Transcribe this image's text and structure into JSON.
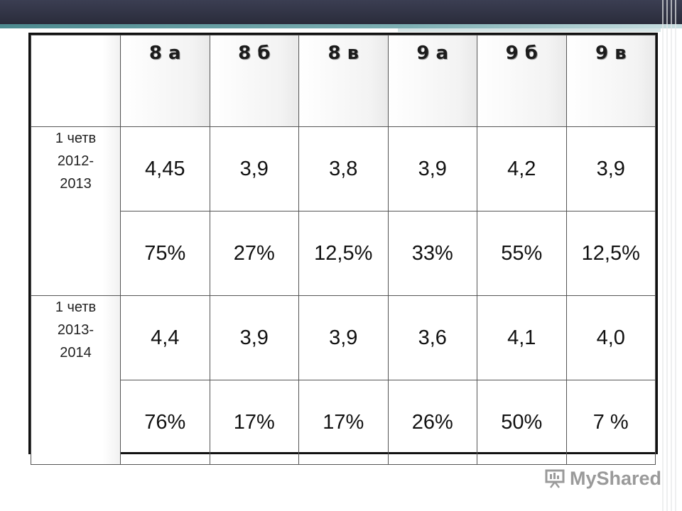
{
  "table": {
    "columns": [
      "8 а",
      "8 б",
      "8 в",
      "9 а",
      "9 б",
      "9 в"
    ],
    "periods": [
      {
        "label_lines": [
          "1 четв",
          "2012-",
          "2013"
        ],
        "averages": [
          "4,45",
          "3,9",
          "3,8",
          "3,9",
          "4,2",
          "3,9"
        ],
        "percents": [
          "75%",
          "27%",
          "12,5%",
          "33%",
          "55%",
          "12,5%"
        ]
      },
      {
        "label_lines": [
          "1 четв",
          "2013-",
          "2014"
        ],
        "averages": [
          "4,4",
          "3,9",
          "3,9",
          "3,6",
          "4,1",
          "4,0"
        ],
        "percents": [
          "76%",
          "17%",
          "17%",
          "26%",
          "50%",
          "7 %"
        ]
      }
    ]
  },
  "watermark": {
    "text": "MyShared"
  },
  "colors": {
    "banner": "#2f3142",
    "accent": "#5f9a9f",
    "border": "#111111"
  }
}
